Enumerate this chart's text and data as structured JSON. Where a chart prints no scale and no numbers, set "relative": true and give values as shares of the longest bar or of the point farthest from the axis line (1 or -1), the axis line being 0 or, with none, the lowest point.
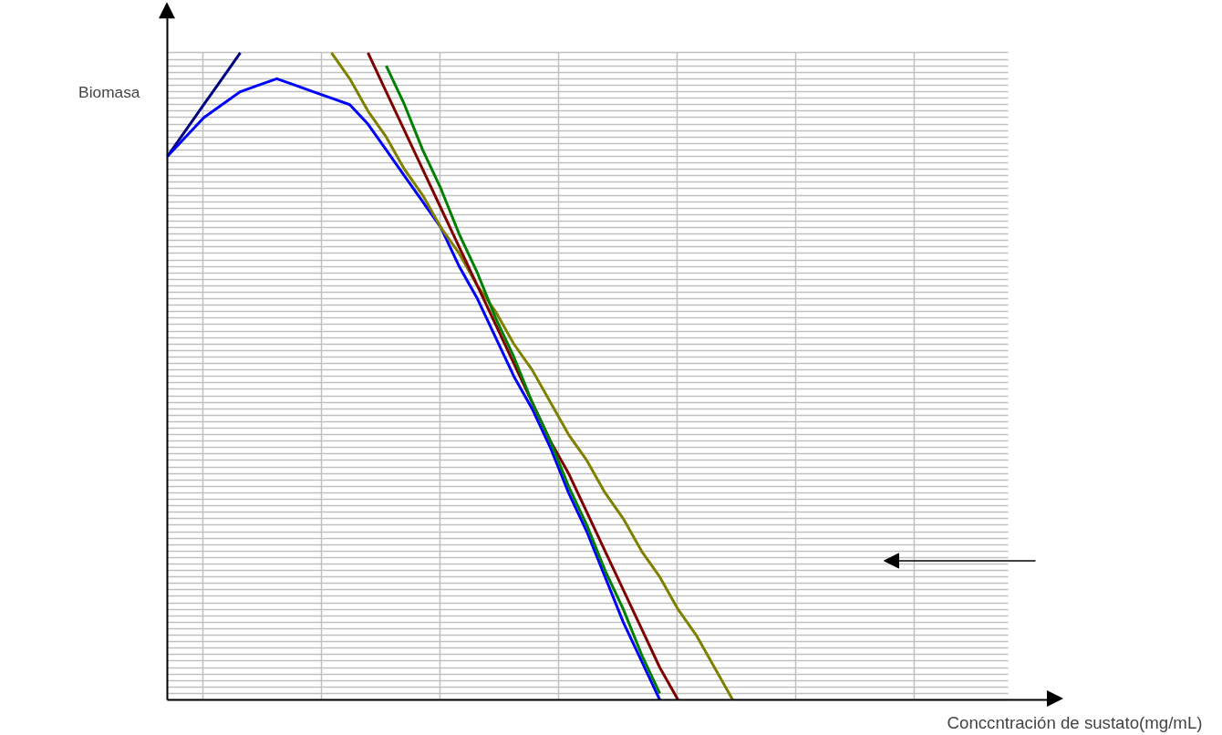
{
  "chart_data": {
    "type": "line",
    "relative": true,
    "grid": true,
    "xlabel": "Conccntración de sustato(mg/mL)",
    "ylabel": "Biomasa",
    "categories": [
      null,
      null,
      null,
      null,
      null,
      null,
      null,
      null,
      null,
      null,
      null,
      null,
      null,
      null,
      null,
      null,
      null,
      null,
      null,
      null,
      null,
      null,
      null,
      null,
      null,
      null,
      null,
      null,
      null,
      null,
      null,
      null,
      null,
      null,
      null,
      null,
      null,
      null,
      null,
      null,
      null,
      null,
      null,
      null,
      null,
      null,
      null
    ],
    "series": [
      {
        "color": "#000080",
        "values": [
          0.84,
          0.88,
          0.92,
          0.96,
          1.0,
          null,
          null,
          null,
          null,
          null,
          null,
          null,
          null,
          null,
          null,
          null,
          null,
          null,
          null,
          null,
          null,
          null,
          null,
          null,
          null,
          null,
          null,
          null,
          null,
          null,
          null,
          null,
          null,
          null,
          null,
          null,
          null,
          null,
          null,
          null,
          null,
          null,
          null,
          null,
          null,
          null,
          null
        ]
      },
      {
        "color": "#0000ff",
        "values": [
          0.84,
          0.87,
          0.9,
          0.92,
          0.94,
          0.95,
          0.96,
          0.95,
          0.94,
          0.93,
          0.92,
          0.89,
          0.85,
          0.81,
          0.77,
          0.73,
          0.67,
          0.62,
          0.56,
          0.5,
          0.45,
          0.39,
          0.32,
          0.26,
          0.19,
          0.12,
          0.06,
          0.0,
          null,
          null,
          null,
          null,
          null,
          null,
          null,
          null,
          null,
          null,
          null,
          null,
          null,
          null,
          null,
          null,
          null,
          null,
          null
        ]
      },
      {
        "color": "#808000",
        "values": [
          null,
          null,
          null,
          null,
          null,
          null,
          null,
          null,
          null,
          1.0,
          0.96,
          0.91,
          0.87,
          0.82,
          0.78,
          0.73,
          0.69,
          0.64,
          0.6,
          0.55,
          0.51,
          0.46,
          0.41,
          0.37,
          0.32,
          0.28,
          0.23,
          0.19,
          0.14,
          0.1,
          0.05,
          0.0,
          null,
          null,
          null,
          null,
          null,
          null,
          null,
          null,
          null,
          null,
          null,
          null,
          null,
          null,
          null
        ]
      },
      {
        "color": "#800000",
        "values": [
          null,
          null,
          null,
          null,
          null,
          null,
          null,
          null,
          null,
          null,
          null,
          1.0,
          0.94,
          0.88,
          0.82,
          0.76,
          0.7,
          0.64,
          0.58,
          0.52,
          0.46,
          0.4,
          0.35,
          0.29,
          0.23,
          0.17,
          0.11,
          0.05,
          0.0,
          null,
          null,
          null,
          null,
          null,
          null,
          null,
          null,
          null,
          null,
          null,
          null,
          null,
          null,
          null,
          null,
          null,
          null
        ]
      },
      {
        "color": "#008000",
        "values": [
          null,
          null,
          null,
          null,
          null,
          null,
          null,
          null,
          null,
          null,
          null,
          null,
          0.98,
          0.92,
          0.85,
          0.79,
          0.72,
          0.66,
          0.59,
          0.53,
          0.46,
          0.4,
          0.33,
          0.27,
          0.2,
          0.14,
          0.07,
          0.01,
          null,
          null,
          null,
          null,
          null,
          null,
          null,
          null,
          null,
          null,
          null,
          null,
          null,
          null,
          null,
          null,
          null,
          null,
          null
        ]
      }
    ]
  }
}
